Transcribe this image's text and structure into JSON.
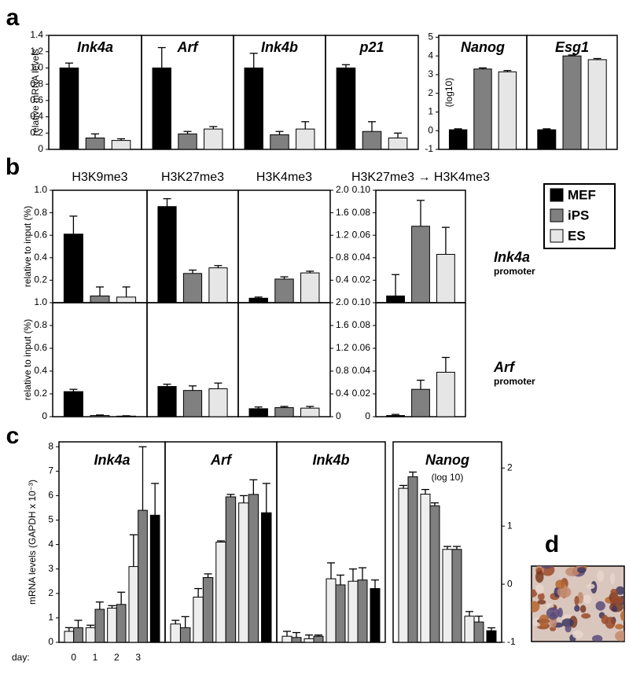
{
  "panel_labels": [
    "a",
    "b",
    "c",
    "d"
  ],
  "legend": [
    {
      "name": "MEF",
      "color": "#000000"
    },
    {
      "name": "iPS",
      "color": "#808080"
    },
    {
      "name": "ES",
      "color": "#e6e6e6"
    }
  ],
  "annotations": [
    {
      "gene": "Ink4a",
      "region": "promoter"
    },
    {
      "gene": "Arf",
      "region": "promoter"
    }
  ],
  "chart_data": [
    {
      "type": "bar",
      "title": "Ink4a",
      "values": [
        1.0,
        0.14,
        0.11
      ],
      "errors": [
        0.06,
        0.05,
        0.02
      ],
      "ylim": [
        0,
        1.4
      ],
      "yticks": [
        0,
        0.2,
        0.4,
        0.6,
        0.8,
        {
          "value": 1,
          "label": "1.0"
        },
        1.2,
        1.4
      ],
      "y_label": "relative mRNA levels"
    },
    {
      "type": "bar",
      "title": "Arf",
      "values": [
        1.0,
        0.19,
        0.25
      ],
      "errors": [
        0.25,
        0.03,
        0.03
      ],
      "ylim": [
        0,
        1.4
      ]
    },
    {
      "type": "bar",
      "title": "Ink4b",
      "values": [
        1.0,
        0.18,
        0.25
      ],
      "errors": [
        0.18,
        0.04,
        0.09
      ],
      "ylim": [
        0,
        1.4
      ]
    },
    {
      "type": "bar",
      "title": "p21",
      "values": [
        1.0,
        0.22,
        0.14
      ],
      "errors": [
        0.04,
        0.12,
        0.06
      ],
      "ylim": [
        0,
        1.4
      ]
    },
    {
      "type": "bar",
      "title": "Nanog",
      "values": [
        0.05,
        3.3,
        3.15
      ],
      "errors": [
        0.05,
        0.06,
        0.07
      ],
      "ylim": [
        -1,
        5.1
      ],
      "yticks": [
        -1,
        0,
        1,
        2,
        3,
        4,
        5
      ],
      "y_label": "(log10)"
    },
    {
      "type": "bar",
      "title": "Esg1",
      "values": [
        0.05,
        4.0,
        3.8
      ],
      "errors": [
        0.05,
        0.05,
        0.06
      ],
      "ylim": [
        -1,
        5.1
      ]
    },
    {
      "type": "bar",
      "title": "H3K9me3",
      "values": [
        0.61,
        0.06,
        0.05
      ],
      "errors": [
        0.16,
        0.08,
        0.09
      ],
      "ylim": [
        0,
        1
      ],
      "yticks": [
        0.2,
        0.4,
        0.6,
        0.8,
        {
          "value": 1,
          "label": "1.0"
        }
      ],
      "y_label": "relative to input (%)"
    },
    {
      "type": "bar",
      "title": "H3K27me3",
      "values": [
        1.71,
        0.52,
        0.62
      ],
      "errors": [
        0.14,
        0.06,
        0.04
      ],
      "ylim": [
        0,
        2
      ]
    },
    {
      "type": "bar",
      "title": "H3K4me3",
      "values": [
        0.08,
        0.42,
        0.53
      ],
      "errors": [
        0.02,
        0.04,
        0.03
      ],
      "ylim": [
        0,
        2
      ],
      "yticks": [
        0.4,
        0.8,
        1.2,
        1.6,
        {
          "value": 2,
          "label": "2.0"
        }
      ],
      "ytick_side": "right"
    },
    {
      "type": "bar",
      "title": "H3K27me3 → H3K4me3",
      "values": [
        0.006,
        0.068,
        0.043
      ],
      "errors": [
        0.019,
        0.023,
        0.024
      ],
      "ylim": [
        0,
        0.1
      ],
      "yticks": [
        0.02,
        0.04,
        0.06,
        0.08,
        {
          "value": 0.1,
          "label": "0.10"
        }
      ]
    },
    {
      "type": "bar",
      "values": [
        0.22,
        0.01,
        0.005
      ],
      "errors": [
        0.02,
        0.005,
        0.003
      ],
      "ylim": [
        0,
        1
      ],
      "yticks": [
        0,
        0.2,
        0.4,
        0.6,
        0.8,
        {
          "value": 1,
          "label": "1.0"
        }
      ],
      "y_label": "relative to input (%)"
    },
    {
      "type": "bar",
      "values": [
        0.53,
        0.46,
        0.49
      ],
      "errors": [
        0.04,
        0.08,
        0.1
      ],
      "ylim": [
        0,
        2
      ]
    },
    {
      "type": "bar",
      "values": [
        0.14,
        0.16,
        0.15
      ],
      "errors": [
        0.03,
        0.02,
        0.03
      ],
      "ylim": [
        0,
        2
      ],
      "yticks": [
        0,
        0.4,
        0.8,
        1.2,
        1.6,
        {
          "value": 2,
          "label": "2.0"
        }
      ],
      "ytick_side": "right"
    },
    {
      "type": "bar",
      "values": [
        0.001,
        0.024,
        0.039
      ],
      "errors": [
        0.001,
        0.008,
        0.013
      ],
      "ylim": [
        0,
        0.1
      ],
      "yticks": [
        0,
        0.02,
        0.04,
        0.06,
        0.08,
        {
          "value": 0.1,
          "label": "0.10"
        }
      ]
    },
    {
      "type": "bar",
      "title": "Ink4a",
      "categories": [
        "0",
        "1",
        "2",
        "3",
        null
      ],
      "xlabel": "day:",
      "y_label": "mRNA levels (GAPDH x 10⁻³)",
      "ylim": [
        0,
        8.2
      ],
      "yticks": [
        0,
        1,
        2,
        3,
        4,
        5,
        6,
        7,
        8
      ],
      "series": [
        {
          "color": "#eeeeee",
          "values": [
            0.45,
            0.6,
            1.4,
            3.1,
            null
          ],
          "errors": [
            0.15,
            0.1,
            0.1,
            1.3,
            null
          ]
        },
        {
          "color": "#7f7f7f",
          "values": [
            0.6,
            1.35,
            1.55,
            5.4,
            null
          ],
          "errors": [
            0.3,
            0.3,
            0.5,
            2.6,
            null
          ]
        },
        {
          "color": "#000000",
          "values": [
            null,
            null,
            null,
            null,
            5.2
          ],
          "errors": [
            null,
            null,
            null,
            null,
            1.3
          ]
        }
      ]
    },
    {
      "type": "bar",
      "title": "Arf",
      "categories": [
        null,
        null,
        null,
        null,
        null
      ],
      "ylim": [
        0,
        8.2
      ],
      "series": [
        {
          "color": "#eeeeee",
          "values": [
            0.75,
            1.85,
            4.1,
            5.7,
            null
          ],
          "errors": [
            0.15,
            0.35,
            0.05,
            0.3,
            null
          ]
        },
        {
          "color": "#7f7f7f",
          "values": [
            0.6,
            2.65,
            5.95,
            6.05,
            null
          ],
          "errors": [
            0.45,
            0.15,
            0.1,
            0.6,
            null
          ]
        },
        {
          "color": "#000000",
          "values": [
            null,
            null,
            null,
            null,
            5.3
          ],
          "errors": [
            null,
            null,
            null,
            null,
            1.2
          ]
        }
      ]
    },
    {
      "type": "bar",
      "title": "Ink4b",
      "categories": [
        null,
        null,
        null,
        null,
        null
      ],
      "ylim": [
        0,
        8.2
      ],
      "series": [
        {
          "color": "#eeeeee",
          "values": [
            0.25,
            0.15,
            2.6,
            2.5,
            null
          ],
          "errors": [
            0.2,
            0.15,
            0.65,
            0.5,
            null
          ]
        },
        {
          "color": "#7f7f7f",
          "values": [
            0.2,
            0.25,
            2.35,
            2.55,
            null
          ],
          "errors": [
            0.2,
            0.05,
            0.4,
            0.5,
            null
          ]
        },
        {
          "color": "#000000",
          "values": [
            null,
            null,
            null,
            null,
            2.2
          ],
          "errors": [
            null,
            null,
            null,
            null,
            0.35
          ]
        }
      ]
    },
    {
      "type": "bar",
      "title": "Nanog",
      "subtitle": "(log 10)",
      "categories": [
        null,
        null,
        null,
        null,
        null
      ],
      "ylim": [
        -1,
        2.45
      ],
      "yticks": [
        -1,
        0,
        1,
        2
      ],
      "ytick_side": "right",
      "series": [
        {
          "color": "#eeeeee",
          "values": [
            1.65,
            1.55,
            0.6,
            -0.55,
            null
          ],
          "errors": [
            0.05,
            0.08,
            0.05,
            0.08,
            null
          ]
        },
        {
          "color": "#7f7f7f",
          "values": [
            1.85,
            1.35,
            0.6,
            -0.65,
            null
          ],
          "errors": [
            0.08,
            0.05,
            0.05,
            0.1,
            null
          ]
        },
        {
          "color": "#000000",
          "values": [
            null,
            null,
            null,
            null,
            -0.8
          ],
          "errors": [
            null,
            null,
            null,
            null,
            0.05
          ]
        }
      ]
    }
  ]
}
